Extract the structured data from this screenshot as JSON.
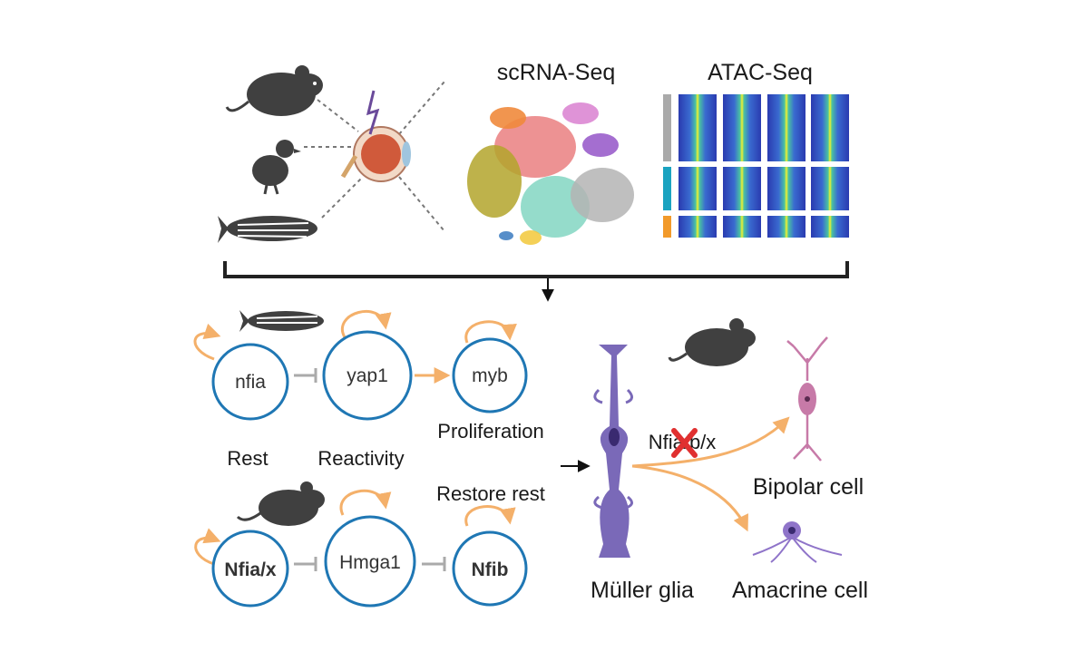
{
  "top": {
    "scrna_title": "scRNA-Seq",
    "atac_title": "ATAC-Seq",
    "species": [
      "mouse-icon",
      "chick-icon",
      "zebrafish-icon"
    ]
  },
  "zebrafish_network": {
    "nodes": [
      "nfia",
      "yap1",
      "myb"
    ],
    "labels": {
      "rest": "Rest",
      "reactivity": "Reactivity",
      "proliferation": "Proliferation"
    }
  },
  "mouse_network": {
    "nodes": [
      "Nfia/x",
      "Hmga1",
      "Nfib"
    ],
    "restore_label": "Restore rest"
  },
  "muller": {
    "knockout_label": "Nfia/b/x",
    "glia_label": "Müller glia",
    "bipolar_label": "Bipolar cell",
    "amacrine_label": "Amacrine cell"
  },
  "colors": {
    "node_stroke": "#1f77b4",
    "activation_arrow": "#f4b06a",
    "inhibition": "#aaaaaa",
    "animal": "#404040",
    "muller_cell": "#7a69b8",
    "bipolar_cell": "#c77aa8",
    "amacrine_cell": "#8f74c9",
    "knockout_x": "#e03030"
  }
}
